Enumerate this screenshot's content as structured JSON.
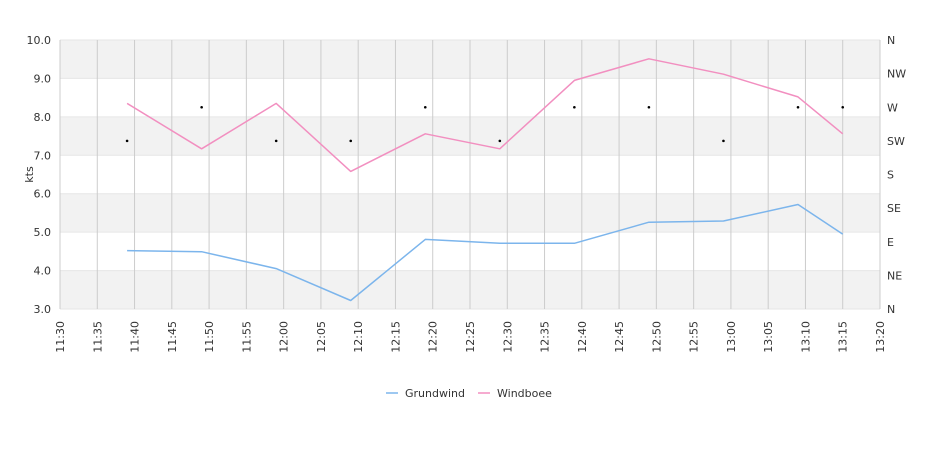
{
  "chart_data": {
    "type": "line",
    "ylabel": "kts",
    "ylim": [
      3.0,
      10.0
    ],
    "y_ticks": [
      "3.0",
      "4.0",
      "5.0",
      "6.0",
      "7.0",
      "8.0",
      "9.0",
      "10.0"
    ],
    "x_ticks": [
      "11:30",
      "11:35",
      "11:40",
      "11:45",
      "11:50",
      "11:55",
      "12:00",
      "12:05",
      "12:10",
      "12:15",
      "12:20",
      "12:25",
      "12:30",
      "12:35",
      "12:40",
      "12:45",
      "12:50",
      "12:55",
      "13:00",
      "13:05",
      "13:10",
      "13:15",
      "13:20"
    ],
    "xlim": [
      "11:30",
      "13:20"
    ],
    "direction_ticks": [
      "N",
      "NE",
      "E",
      "SE",
      "S",
      "SW",
      "W",
      "NW",
      "N"
    ],
    "grid": true,
    "banding": "alternating light grey bands",
    "legend_position": "bottom-center",
    "x": [
      "11:39",
      "11:49",
      "11:59",
      "12:09",
      "12:19",
      "12:29",
      "12:39",
      "12:49",
      "12:59",
      "13:09",
      "13:15"
    ],
    "series": [
      {
        "name": "Grundwind",
        "color": "#7cb5ec",
        "values": [
          4.52,
          4.49,
          4.05,
          3.22,
          4.81,
          4.71,
          4.71,
          5.26,
          5.29,
          5.72,
          4.95
        ]
      },
      {
        "name": "Windboee",
        "color": "#f28fc0",
        "values": [
          8.35,
          7.17,
          8.35,
          6.58,
          7.56,
          7.17,
          8.95,
          9.51,
          9.11,
          8.52,
          7.56
        ]
      }
    ],
    "direction_values": [
      "SW",
      "W",
      "SW",
      "SW",
      "W",
      "SW",
      "W",
      "W",
      "SW",
      "W",
      "W"
    ]
  }
}
